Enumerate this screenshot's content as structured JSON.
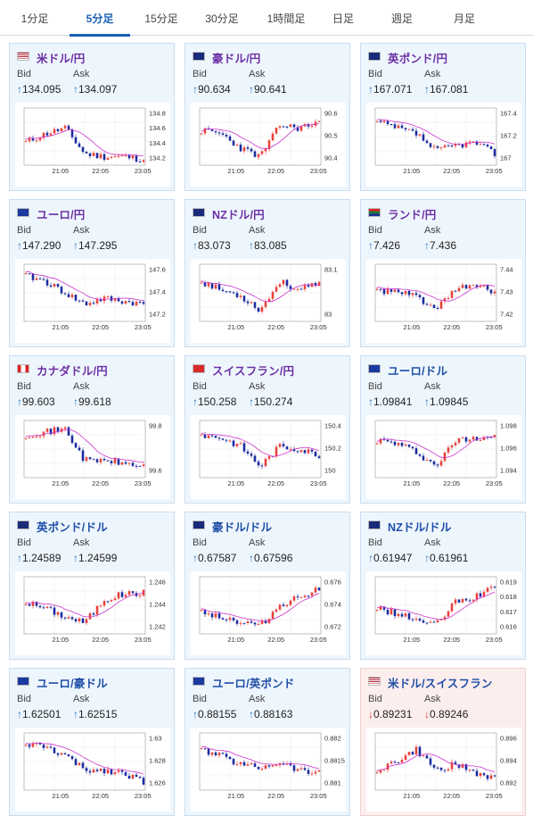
{
  "tabs": [
    {
      "label": "1分足",
      "left": 0,
      "width": 78
    },
    {
      "label": "5分足",
      "left": 78,
      "width": 68,
      "active": true
    },
    {
      "label": "15分足",
      "left": 146,
      "width": 70
    },
    {
      "label": "30分足",
      "left": 216,
      "width": 66
    },
    {
      "label": "1時間足",
      "left": 282,
      "width": 78
    },
    {
      "label": "日足",
      "left": 360,
      "width": 50
    },
    {
      "label": "週足",
      "left": 410,
      "width": 82
    },
    {
      "label": "月足",
      "left": 492,
      "width": 58
    }
  ],
  "labels": {
    "bid": "Bid",
    "ask": "Ask",
    "up_arrow": "↑",
    "down_arrow": "↓"
  },
  "colors": {
    "up_candle": "#e8413b",
    "down_candle": "#1a2aa0",
    "ma": "#cc33cc",
    "line": "#33aadd"
  },
  "cards": [
    {
      "title": "米ドル/円",
      "flag": "us-jp",
      "bid": "134.095",
      "ask": "134.097",
      "dir": "up",
      "chart": {
        "y_ticks": [
          "134.8",
          "134.6",
          "134.4",
          "134.2"
        ],
        "x_ticks": [
          "21:05",
          "22:05",
          "23:05"
        ],
        "seed": 11,
        "trend": [
          0.4,
          0.55,
          0.65,
          0.2,
          0.15,
          0.15,
          0.1
        ]
      }
    },
    {
      "title": "豪ドル/円",
      "flag": "au-jp",
      "bid": "90.634",
      "ask": "90.641",
      "dir": "up",
      "chart": {
        "y_ticks": [
          "90.6",
          "90.5",
          "90.4"
        ],
        "x_ticks": [
          "21:05",
          "22:05",
          "23:05"
        ],
        "seed": 23,
        "trend": [
          0.6,
          0.55,
          0.3,
          0.15,
          0.7,
          0.65,
          0.75
        ]
      }
    },
    {
      "title": "英ポンド/円",
      "flag": "gb-jp",
      "bid": "167.071",
      "ask": "167.081",
      "dir": "up",
      "chart": {
        "y_ticks": [
          "167.4",
          "167.2",
          "167"
        ],
        "x_ticks": [
          "21:05",
          "22:05",
          "23:05"
        ],
        "seed": 37,
        "trend": [
          0.75,
          0.65,
          0.55,
          0.25,
          0.35,
          0.4,
          0.2
        ]
      }
    },
    {
      "title": "ユーロ/円",
      "flag": "eu-jp",
      "bid": "147.290",
      "ask": "147.295",
      "dir": "up",
      "chart": {
        "y_ticks": [
          "147.6",
          "147.4",
          "147.2"
        ],
        "x_ticks": [
          "21:05",
          "22:05",
          "23:05"
        ],
        "seed": 41,
        "trend": [
          0.8,
          0.7,
          0.5,
          0.3,
          0.4,
          0.35,
          0.3
        ]
      }
    },
    {
      "title": "NZドル/円",
      "flag": "nz-jp",
      "bid": "83.073",
      "ask": "83.085",
      "dir": "up",
      "chart": {
        "y_ticks": [
          "83.1",
          "83"
        ],
        "x_ticks": [
          "21:05",
          "22:05",
          "23:05"
        ],
        "seed": 53,
        "trend": [
          0.7,
          0.55,
          0.45,
          0.2,
          0.7,
          0.55,
          0.65
        ]
      }
    },
    {
      "title": "ランド/円",
      "flag": "za-jp",
      "bid": "7.426",
      "ask": "7.436",
      "dir": "up",
      "chart": {
        "y_ticks": [
          "7.44",
          "7.43",
          "7.42"
        ],
        "x_ticks": [
          "21:05",
          "22:05",
          "23:05"
        ],
        "seed": 61,
        "trend": [
          0.55,
          0.5,
          0.45,
          0.2,
          0.55,
          0.65,
          0.5
        ]
      }
    },
    {
      "title": "カナダドル/円",
      "flag": "ca-jp",
      "bid": "99.603",
      "ask": "99.618",
      "dir": "up",
      "chart": {
        "y_ticks": [
          "99.8",
          "99.6"
        ],
        "x_ticks": [
          "21:05",
          "22:05",
          "23:05"
        ],
        "seed": 71,
        "trend": [
          0.75,
          0.8,
          0.85,
          0.3,
          0.3,
          0.25,
          0.2
        ]
      }
    },
    {
      "title": "スイスフラン/円",
      "flag": "ch-jp",
      "bid": "150.258",
      "ask": "150.274",
      "dir": "up",
      "chart": {
        "y_ticks": [
          "150.4",
          "150.2",
          "150"
        ],
        "x_ticks": [
          "21:05",
          "22:05",
          "23:05"
        ],
        "seed": 83,
        "trend": [
          0.75,
          0.7,
          0.55,
          0.2,
          0.55,
          0.5,
          0.4
        ]
      }
    },
    {
      "title": "ユーロ/ドル",
      "flag": "eu-us",
      "bid": "1.09841",
      "ask": "1.09845",
      "dir": "up",
      "blue": true,
      "chart": {
        "y_ticks": [
          "1.098",
          "1.096",
          "1.094"
        ],
        "x_ticks": [
          "21:05",
          "22:05",
          "23:05"
        ],
        "seed": 97,
        "trend": [
          0.65,
          0.6,
          0.45,
          0.2,
          0.65,
          0.7,
          0.75
        ]
      }
    },
    {
      "title": "英ポンド/ドル",
      "flag": "gb-us",
      "bid": "1.24589",
      "ask": "1.24599",
      "dir": "up",
      "blue": true,
      "chart": {
        "y_ticks": [
          "1.246",
          "1.244",
          "1.242"
        ],
        "x_ticks": [
          "21:05",
          "22:05",
          "23:05"
        ],
        "seed": 101,
        "trend": [
          0.55,
          0.45,
          0.3,
          0.2,
          0.6,
          0.7,
          0.72
        ]
      }
    },
    {
      "title": "豪ドル/ドル",
      "flag": "au-us",
      "bid": "0.67587",
      "ask": "0.67596",
      "dir": "up",
      "blue": true,
      "chart": {
        "y_ticks": [
          "0.676",
          "0.674",
          "0.672"
        ],
        "x_ticks": [
          "21:05",
          "22:05",
          "23:05"
        ],
        "seed": 113,
        "trend": [
          0.4,
          0.3,
          0.2,
          0.15,
          0.5,
          0.65,
          0.8
        ]
      }
    },
    {
      "title": "NZドル/ドル",
      "flag": "nz-us",
      "bid": "0.61947",
      "ask": "0.61961",
      "dir": "up",
      "blue": true,
      "chart": {
        "y_ticks": [
          "0.619",
          "0.618",
          "0.617",
          "0.616"
        ],
        "x_ticks": [
          "21:05",
          "22:05",
          "23:05"
        ],
        "seed": 127,
        "trend": [
          0.45,
          0.35,
          0.25,
          0.15,
          0.55,
          0.65,
          0.8
        ]
      }
    },
    {
      "title": "ユーロ/豪ドル",
      "flag": "eu-au",
      "bid": "1.62501",
      "ask": "1.62515",
      "dir": "up",
      "blue": true,
      "chart": {
        "y_ticks": [
          "1.63",
          "1.628",
          "1.626"
        ],
        "x_ticks": [
          "21:05",
          "22:05",
          "23:05"
        ],
        "seed": 131,
        "trend": [
          0.8,
          0.75,
          0.6,
          0.35,
          0.35,
          0.3,
          0.15
        ]
      }
    },
    {
      "title": "ユーロ/英ポンド",
      "flag": "eu-gb",
      "bid": "0.88155",
      "ask": "0.88163",
      "dir": "up",
      "blue": true,
      "chart": {
        "y_ticks": [
          "0.882",
          "0.8815",
          "0.881"
        ],
        "x_ticks": [
          "21:05",
          "22:05",
          "23:05"
        ],
        "seed": 139,
        "trend": [
          0.7,
          0.6,
          0.45,
          0.4,
          0.5,
          0.35,
          0.3
        ]
      }
    },
    {
      "title": "米ドル/スイスフラン",
      "flag": "us-ch",
      "bid": "0.89231",
      "ask": "0.89246",
      "dir": "down",
      "blue": true,
      "chart": {
        "y_ticks": [
          "0.896",
          "0.894",
          "0.892"
        ],
        "x_ticks": [
          "21:05",
          "22:05",
          "23:05"
        ],
        "seed": 149,
        "trend": [
          0.35,
          0.5,
          0.7,
          0.35,
          0.45,
          0.3,
          0.2
        ]
      }
    }
  ]
}
